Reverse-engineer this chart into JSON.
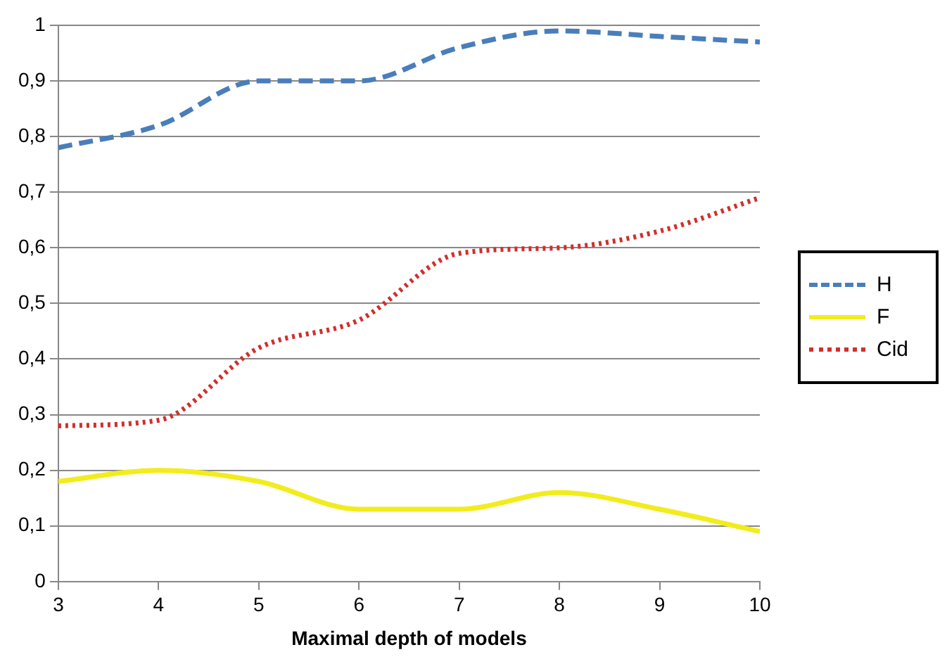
{
  "chart_data": {
    "type": "line",
    "xlabel": "Maximal depth of models",
    "x": [
      3,
      4,
      5,
      6,
      7,
      8,
      9,
      10
    ],
    "series": [
      {
        "name": "H",
        "color": "#4a7ebb",
        "line_style": "dashed",
        "values": [
          0.78,
          0.82,
          0.9,
          0.9,
          0.96,
          0.99,
          0.98,
          0.97
        ]
      },
      {
        "name": "F",
        "color": "#f2ec1c",
        "line_style": "solid",
        "values": [
          0.18,
          0.2,
          0.18,
          0.13,
          0.13,
          0.16,
          0.13,
          0.09
        ]
      },
      {
        "name": "Cid",
        "color": "#d0302c",
        "line_style": "dotted",
        "values": [
          0.28,
          0.29,
          0.42,
          0.47,
          0.59,
          0.6,
          0.63,
          0.69
        ]
      }
    ],
    "xlim": [
      3,
      10
    ],
    "xticks": [
      3,
      4,
      5,
      6,
      7,
      8,
      9,
      10
    ],
    "ylim": [
      0,
      1
    ],
    "yticks": [
      0,
      {
        "value": 0.1,
        "label": "0,1"
      },
      {
        "value": 0.2,
        "label": "0,2"
      },
      {
        "value": 0.3,
        "label": "0,3"
      },
      {
        "value": 0.4,
        "label": "0,4"
      },
      {
        "value": 0.5,
        "label": "0,5"
      },
      {
        "value": 0.6,
        "label": "0,6"
      },
      {
        "value": 0.7,
        "label": "0,7"
      },
      {
        "value": 0.8,
        "label": "0,8"
      },
      {
        "value": 0.9,
        "label": "0,9"
      },
      1
    ],
    "grid": "y",
    "legend": "right",
    "marker": "none"
  }
}
